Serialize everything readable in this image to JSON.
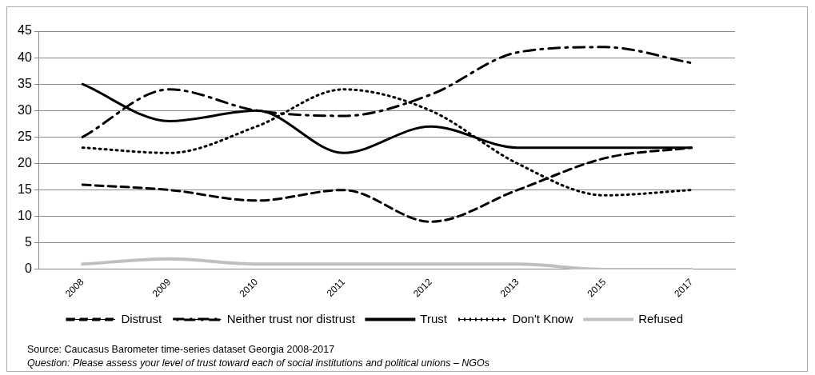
{
  "chart_data": {
    "type": "line",
    "categories": [
      "2008",
      "2009",
      "2010",
      "2011",
      "2012",
      "2013",
      "2015",
      "2017"
    ],
    "series": [
      {
        "name": "Distrust",
        "color": "#000000",
        "line_style": "dashed",
        "values": [
          16,
          15,
          13,
          15,
          9,
          15,
          21,
          23
        ]
      },
      {
        "name": "Neither trust nor distrust",
        "color": "#000000",
        "line_style": "dashdot",
        "values": [
          25,
          34,
          30,
          29,
          33,
          41,
          42,
          39
        ]
      },
      {
        "name": "Trust",
        "color": "#000000",
        "line_style": "solid",
        "values": [
          35,
          28,
          30,
          22,
          27,
          23,
          23,
          23
        ]
      },
      {
        "name": "Don't Know",
        "color": "#000000",
        "line_style": "dotted",
        "values": [
          23,
          22,
          27,
          34,
          30,
          20,
          14,
          15
        ]
      },
      {
        "name": "Refused",
        "color": "#bfbfbf",
        "line_style": "solid",
        "values": [
          1,
          2,
          1,
          1,
          1,
          1,
          0,
          0
        ]
      }
    ],
    "ylim": [
      0,
      45
    ],
    "yticks": [
      0,
      5,
      10,
      15,
      20,
      25,
      30,
      35,
      40,
      45
    ],
    "grid": "y",
    "legend": "bottom",
    "marker": "none",
    "annotations": [
      "Source: Caucasus Barometer  time-series  dataset Georgia  2008-2017",
      "Question: Please assess your  level of trust toward  each of social institutions and political unions – NGOs"
    ]
  }
}
